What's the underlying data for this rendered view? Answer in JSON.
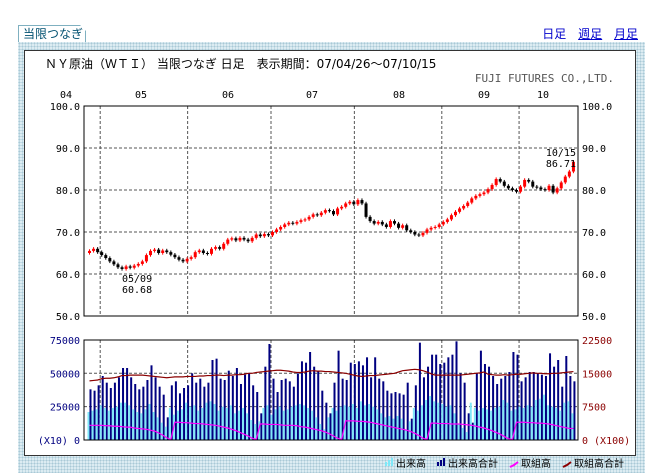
{
  "tab": {
    "label": "当限つなぎ"
  },
  "links": [
    "日足",
    "週足",
    "月足"
  ],
  "chart_data": {
    "type": "candlestick",
    "title": "ＮＹ原油（ＷＴＩ） 当限つなぎ 日足　表示期間：07/04/26～07/10/15",
    "company": "FUJI FUTURES CO.,LTD.",
    "months": [
      "04",
      "05",
      "06",
      "07",
      "08",
      "09",
      "10"
    ],
    "price_axis": {
      "ylim": [
        50,
        100
      ],
      "ticks": [
        "100.0",
        "90.0",
        "80.0",
        "70.0",
        "60.0",
        "50.0"
      ]
    },
    "annotations": [
      {
        "date": "05/09",
        "value": "60.68"
      },
      {
        "date": "10/15",
        "value": "86.71"
      }
    ],
    "closes": [
      65.5,
      66.0,
      65.2,
      64.5,
      63.8,
      63.0,
      62.3,
      61.6,
      61.2,
      61.8,
      61.5,
      62.0,
      62.4,
      63.0,
      64.5,
      65.5,
      65.8,
      65.0,
      65.6,
      65.2,
      64.6,
      64.0,
      63.4,
      63.0,
      63.6,
      64.0,
      65.2,
      65.6,
      65.0,
      64.8,
      66.0,
      66.4,
      66.0,
      67.2,
      68.2,
      68.5,
      68.0,
      68.6,
      68.2,
      67.8,
      68.6,
      69.4,
      69.0,
      69.5,
      69.2,
      70.0,
      70.6,
      71.2,
      71.8,
      72.2,
      72.0,
      72.4,
      72.8,
      73.0,
      73.6,
      74.2,
      74.0,
      74.6,
      75.2,
      75.0,
      74.2,
      75.6,
      76.0,
      76.8,
      77.2,
      76.6,
      77.6,
      76.8,
      73.6,
      72.6,
      72.0,
      72.4,
      71.8,
      71.2,
      72.6,
      72.0,
      71.0,
      71.6,
      70.4,
      70.0,
      69.4,
      69.2,
      69.8,
      70.6,
      71.0,
      71.2,
      71.8,
      72.4,
      73.0,
      74.0,
      74.8,
      75.6,
      76.2,
      77.0,
      78.0,
      78.6,
      79.0,
      79.4,
      80.2,
      81.2,
      82.6,
      82.0,
      81.0,
      80.4,
      80.0,
      79.6,
      80.8,
      82.4,
      82.0,
      80.8,
      80.6,
      80.2,
      80.0,
      81.0,
      79.4,
      80.4,
      81.8,
      83.2,
      84.4,
      86.71
    ],
    "volume_axis": {
      "left_ticks": [
        "75000",
        "50000",
        "25000",
        "(X10) 0"
      ],
      "right_ticks": [
        "22500",
        "15000",
        "7500",
        "0 (X100)"
      ],
      "left_max": 75000,
      "right_max": 22500
    },
    "series": [
      {
        "name": "出来高",
        "color": "#7fe8f8",
        "values": [
          21000,
          22000,
          23000,
          26000,
          24000,
          22000,
          24000,
          25000,
          28000,
          28000,
          26000,
          23000,
          21000,
          20000,
          23000,
          27000,
          21000,
          17000,
          13000,
          10000,
          24000,
          19000,
          22000,
          23000,
          28000,
          25000,
          26000,
          22000,
          24000,
          28000,
          29000,
          27000,
          22000,
          25000,
          24000,
          26000,
          20000,
          22000,
          24000,
          20000,
          15000,
          12000,
          14000,
          24000,
          26000,
          19000,
          23000,
          25000,
          22000,
          23000,
          25000,
          26000,
          27000,
          26000,
          24000,
          22000,
          17000,
          12000,
          8000,
          17000,
          24000,
          22000,
          25000,
          26000,
          25000,
          27000,
          24000,
          29000,
          26000,
          27000,
          25000,
          23000,
          20000,
          17000,
          18000,
          16000,
          18000,
          16000,
          8000,
          14000,
          24000,
          22000,
          26000,
          30000,
          33000,
          29000,
          28000,
          27000,
          25000,
          26000,
          20000,
          12000,
          9000,
          6000,
          28000,
          24000,
          22000,
          24000,
          23000,
          22000,
          24000,
          25000,
          30000,
          28000,
          22000,
          23000,
          25000,
          24000,
          26000,
          25000,
          30000,
          31000,
          34000,
          26000,
          25000,
          24000,
          22000,
          28000,
          29000,
          20000
        ]
      },
      {
        "name": "出来高合計",
        "color": "#000080",
        "values": [
          38000,
          37000,
          41000,
          48000,
          43000,
          39000,
          43000,
          47000,
          54000,
          54000,
          47000,
          42000,
          38000,
          40000,
          45000,
          56000,
          47000,
          40000,
          34000,
          17000,
          41000,
          44000,
          35000,
          39000,
          41000,
          50000,
          43000,
          46000,
          40000,
          43000,
          60000,
          61000,
          46000,
          45000,
          52000,
          48000,
          54000,
          42000,
          49000,
          50000,
          41000,
          36000,
          20000,
          55000,
          72000,
          46000,
          36000,
          45000,
          46000,
          44000,
          40000,
          50000,
          59000,
          58000,
          66000,
          55000,
          52000,
          37000,
          28000,
          20000,
          43000,
          67000,
          46000,
          45000,
          58000,
          57000,
          59000,
          56000,
          62000,
          47000,
          62000,
          46000,
          44000,
          37000,
          35000,
          36000,
          35000,
          34000,
          43000,
          16000,
          41000,
          73000,
          47000,
          55000,
          64000,
          64000,
          57000,
          58000,
          62000,
          64000,
          74000,
          50000,
          43000,
          20000,
          13000,
          50000,
          67000,
          57000,
          55000,
          48000,
          42000,
          46000,
          48000,
          51000,
          66000,
          64000,
          44000,
          47000,
          51000,
          51000,
          50000,
          49000,
          48000,
          65000,
          55000,
          60000,
          40000,
          63000,
          48000,
          44000
        ]
      },
      {
        "name": "取組高",
        "color": "#ff00ff",
        "values": [
          3300,
          3300,
          3300,
          3300,
          3200,
          3200,
          3100,
          3100,
          3000,
          2900,
          2900,
          2700,
          2600,
          2500,
          2400,
          2200,
          2000,
          1600,
          1100,
          500,
          100,
          4000,
          4000,
          3900,
          3900,
          3800,
          3700,
          3700,
          3600,
          3500,
          3400,
          3300,
          3100,
          2900,
          2700,
          2400,
          2100,
          1700,
          1300,
          900,
          400,
          100,
          3600,
          3600,
          3500,
          3500,
          3500,
          3400,
          3300,
          3300,
          3300,
          3200,
          3000,
          2900,
          2700,
          2500,
          2300,
          2100,
          1800,
          1400,
          900,
          400,
          100,
          4300,
          4300,
          4300,
          4200,
          4200,
          4100,
          4000,
          3800,
          3600,
          3400,
          3200,
          3000,
          2800,
          2600,
          2400,
          2200,
          1900,
          1500,
          1000,
          400,
          100,
          3800,
          3800,
          3700,
          3700,
          3700,
          3600,
          3600,
          3600,
          3500,
          3400,
          3300,
          3100,
          2900,
          2700,
          2400,
          2100,
          1700,
          1300,
          800,
          300,
          100,
          4000,
          4000,
          4000,
          3900,
          3900,
          3800,
          3800,
          3700,
          3600,
          3400,
          3200,
          3000,
          2800,
          2600,
          2600
        ]
      },
      {
        "name": "取組高合計",
        "color": "#8b0000",
        "values": [
          13300,
          13400,
          13500,
          13800,
          13900,
          13900,
          14000,
          14200,
          14500,
          14500,
          14600,
          14600,
          14600,
          14600,
          14500,
          14400,
          14300,
          14200,
          14100,
          14000,
          14100,
          14200,
          14200,
          14200,
          14300,
          14300,
          14300,
          14400,
          14400,
          14500,
          14500,
          14600,
          14600,
          14500,
          14600,
          14600,
          14700,
          14700,
          14800,
          15000,
          15000,
          15200,
          15300,
          15400,
          15500,
          15600,
          15700,
          15700,
          15600,
          15500,
          15300,
          15200,
          15200,
          15300,
          15500,
          15600,
          15500,
          15500,
          15400,
          15400,
          15300,
          15200,
          15100,
          15000,
          14800,
          14600,
          14400,
          14300,
          14400,
          14500,
          14500,
          14600,
          14700,
          14800,
          14900,
          15000,
          15300,
          15600,
          15700,
          15800,
          15900,
          15800,
          15600,
          15300,
          14900,
          14600,
          14600,
          14600,
          14600,
          14600,
          14600,
          14600,
          14700,
          14800,
          14900,
          15000,
          15100,
          15300,
          14800,
          14700,
          14600,
          14600,
          14700,
          14600,
          14700,
          14800,
          14800,
          14900,
          15000,
          15100,
          15000,
          15000,
          14900,
          14900,
          15000,
          15000,
          15100,
          15200,
          15300,
          15400
        ]
      }
    ],
    "colors": {
      "up": "#ff0000",
      "down": "#000000",
      "axis_left": "#000080",
      "axis_right": "#8b0000"
    }
  }
}
